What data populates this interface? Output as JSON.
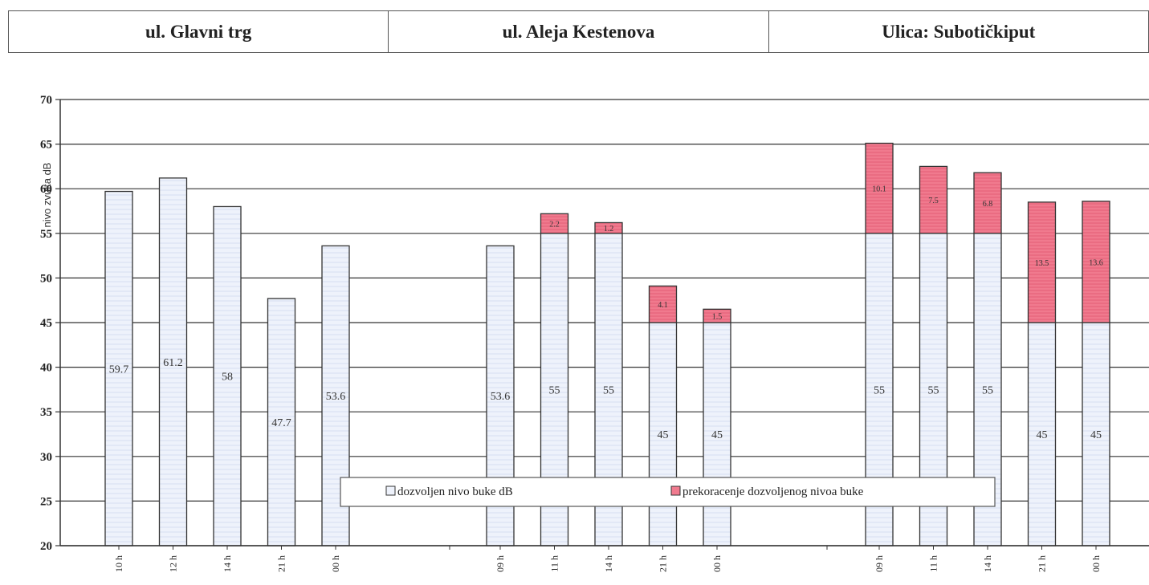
{
  "header": {
    "cells": [
      "ul. Glavni trg",
      "ul. Aleja Kestenova",
      "Ulica: Subotičkiput"
    ]
  },
  "chart_data": {
    "type": "bar",
    "stacked": true,
    "ylabel": "nivo zvuka dB",
    "ylim": [
      20,
      70
    ],
    "yticks": [
      20,
      25,
      30,
      35,
      40,
      45,
      50,
      55,
      60,
      65,
      70
    ],
    "grid": true,
    "legend_position": "bottom-center",
    "groups": [
      {
        "name": "ul. Glavni trg",
        "categories": [
          "10 h",
          "12 h",
          "14 h",
          "21 h",
          "00 h"
        ],
        "allowed": [
          59.7,
          61.2,
          58,
          47.7,
          53.6
        ],
        "exceed": [
          0,
          0,
          0,
          0,
          0
        ]
      },
      {
        "name": "ul. Aleja Kestenova",
        "categories": [
          "09 h",
          "11 h",
          "14 h",
          "21 h",
          "00 h"
        ],
        "allowed": [
          53.6,
          55,
          55,
          45,
          45
        ],
        "exceed": [
          0,
          2.2,
          1.2,
          4.1,
          1.5
        ]
      },
      {
        "name": "Ulica: Subotičkiput",
        "categories": [
          "09 h",
          "11 h",
          "14 h",
          "21 h",
          "00 h"
        ],
        "allowed": [
          55,
          55,
          55,
          45,
          45
        ],
        "exceed": [
          10.1,
          7.5,
          6.8,
          13.5,
          13.6
        ]
      }
    ],
    "series": [
      {
        "name": "dozvoljen nivo buke dB",
        "color": "#eef2fb"
      },
      {
        "name": "prekoracenje dozvoljenog nivoa buke",
        "color": "#f07a8e"
      }
    ]
  }
}
